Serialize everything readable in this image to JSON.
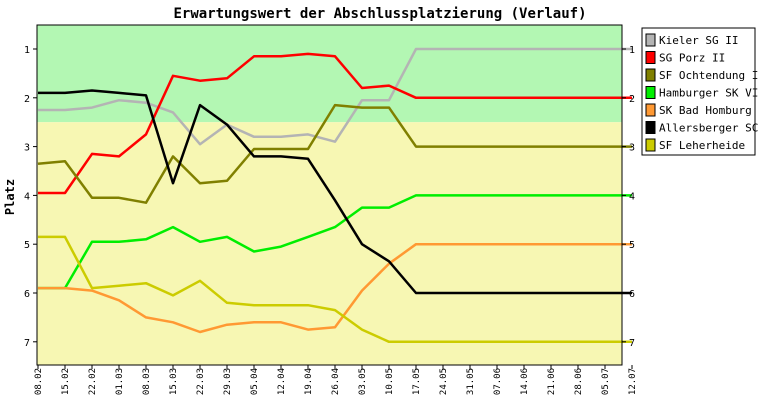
{
  "chart_data": {
    "type": "line",
    "title": "Erwartungswert der Abschlussplatzierung (Verlauf)",
    "ylabel": "Platz",
    "xlabel": "",
    "ylim": [
      1,
      7
    ],
    "y_axis_reversed": true,
    "yticks": [
      "1",
      "2",
      "3",
      "4",
      "5",
      "6",
      "7"
    ],
    "grid": false,
    "legend_position": "right",
    "background_bands": [
      {
        "from": 0.5,
        "to": 2.5,
        "color": "#b3f7b3"
      },
      {
        "from": 2.5,
        "to": 7.5,
        "color": "#f7f7b3"
      }
    ],
    "categories": [
      "08.02",
      "15.02",
      "22.02",
      "01.03",
      "08.03",
      "15.03",
      "22.03",
      "29.03",
      "05.04",
      "12.04",
      "19.04",
      "26.04",
      "03.05",
      "10.05",
      "17.05",
      "24.05",
      "31.05",
      "07.06",
      "14.06",
      "21.06",
      "28.06",
      "05.07",
      "12.07"
    ],
    "series": [
      {
        "name": "Kieler SG II",
        "color": "#b4b4b4",
        "values": [
          2.25,
          2.25,
          2.2,
          2.05,
          2.1,
          2.3,
          2.95,
          2.55,
          2.8,
          2.8,
          2.75,
          2.9,
          2.05,
          2.05,
          1.0,
          1.0,
          1.0,
          1.0,
          1.0,
          1.0,
          1.0,
          1.0,
          1.0
        ]
      },
      {
        "name": "SG Porz II",
        "color": "#ff0000",
        "values": [
          3.95,
          3.95,
          3.15,
          3.2,
          2.75,
          1.55,
          1.65,
          1.6,
          1.15,
          1.15,
          1.1,
          1.15,
          1.8,
          1.75,
          2.0,
          2.0,
          2.0,
          2.0,
          2.0,
          2.0,
          2.0,
          2.0,
          2.0
        ]
      },
      {
        "name": "SF Ochtendung I",
        "color": "#808000",
        "values": [
          3.35,
          3.3,
          4.05,
          4.05,
          4.15,
          3.2,
          3.75,
          3.7,
          3.05,
          3.05,
          3.05,
          2.15,
          2.2,
          2.2,
          3.0,
          3.0,
          3.0,
          3.0,
          3.0,
          3.0,
          3.0,
          3.0,
          3.0
        ]
      },
      {
        "name": "Hamburger SK VI",
        "color": "#00ee00",
        "values": [
          5.9,
          5.9,
          4.95,
          4.95,
          4.9,
          4.65,
          4.95,
          4.85,
          5.15,
          5.05,
          4.85,
          4.65,
          4.25,
          4.25,
          4.0,
          4.0,
          4.0,
          4.0,
          4.0,
          4.0,
          4.0,
          4.0,
          4.0
        ]
      },
      {
        "name": "SK Bad Homburg",
        "color": "#ff9933",
        "values": [
          5.9,
          5.9,
          5.95,
          6.15,
          6.5,
          6.6,
          6.8,
          6.65,
          6.6,
          6.6,
          6.75,
          6.7,
          5.95,
          5.4,
          5.0,
          5.0,
          5.0,
          5.0,
          5.0,
          5.0,
          5.0,
          5.0,
          5.0
        ]
      },
      {
        "name": "Allersberger SC",
        "color": "#000000",
        "values": [
          1.9,
          1.9,
          1.85,
          1.9,
          1.95,
          3.75,
          2.15,
          2.55,
          3.2,
          3.2,
          3.25,
          4.1,
          5.0,
          5.35,
          6.0,
          6.0,
          6.0,
          6.0,
          6.0,
          6.0,
          6.0,
          6.0,
          6.0
        ]
      },
      {
        "name": "SF Leherheide",
        "color": "#cccc00",
        "values": [
          4.85,
          4.85,
          5.9,
          5.85,
          5.8,
          6.05,
          5.75,
          6.2,
          6.25,
          6.25,
          6.25,
          6.35,
          6.75,
          7.0,
          7.0,
          7.0,
          7.0,
          7.0,
          7.0,
          7.0,
          7.0,
          7.0,
          7.0
        ]
      }
    ]
  }
}
